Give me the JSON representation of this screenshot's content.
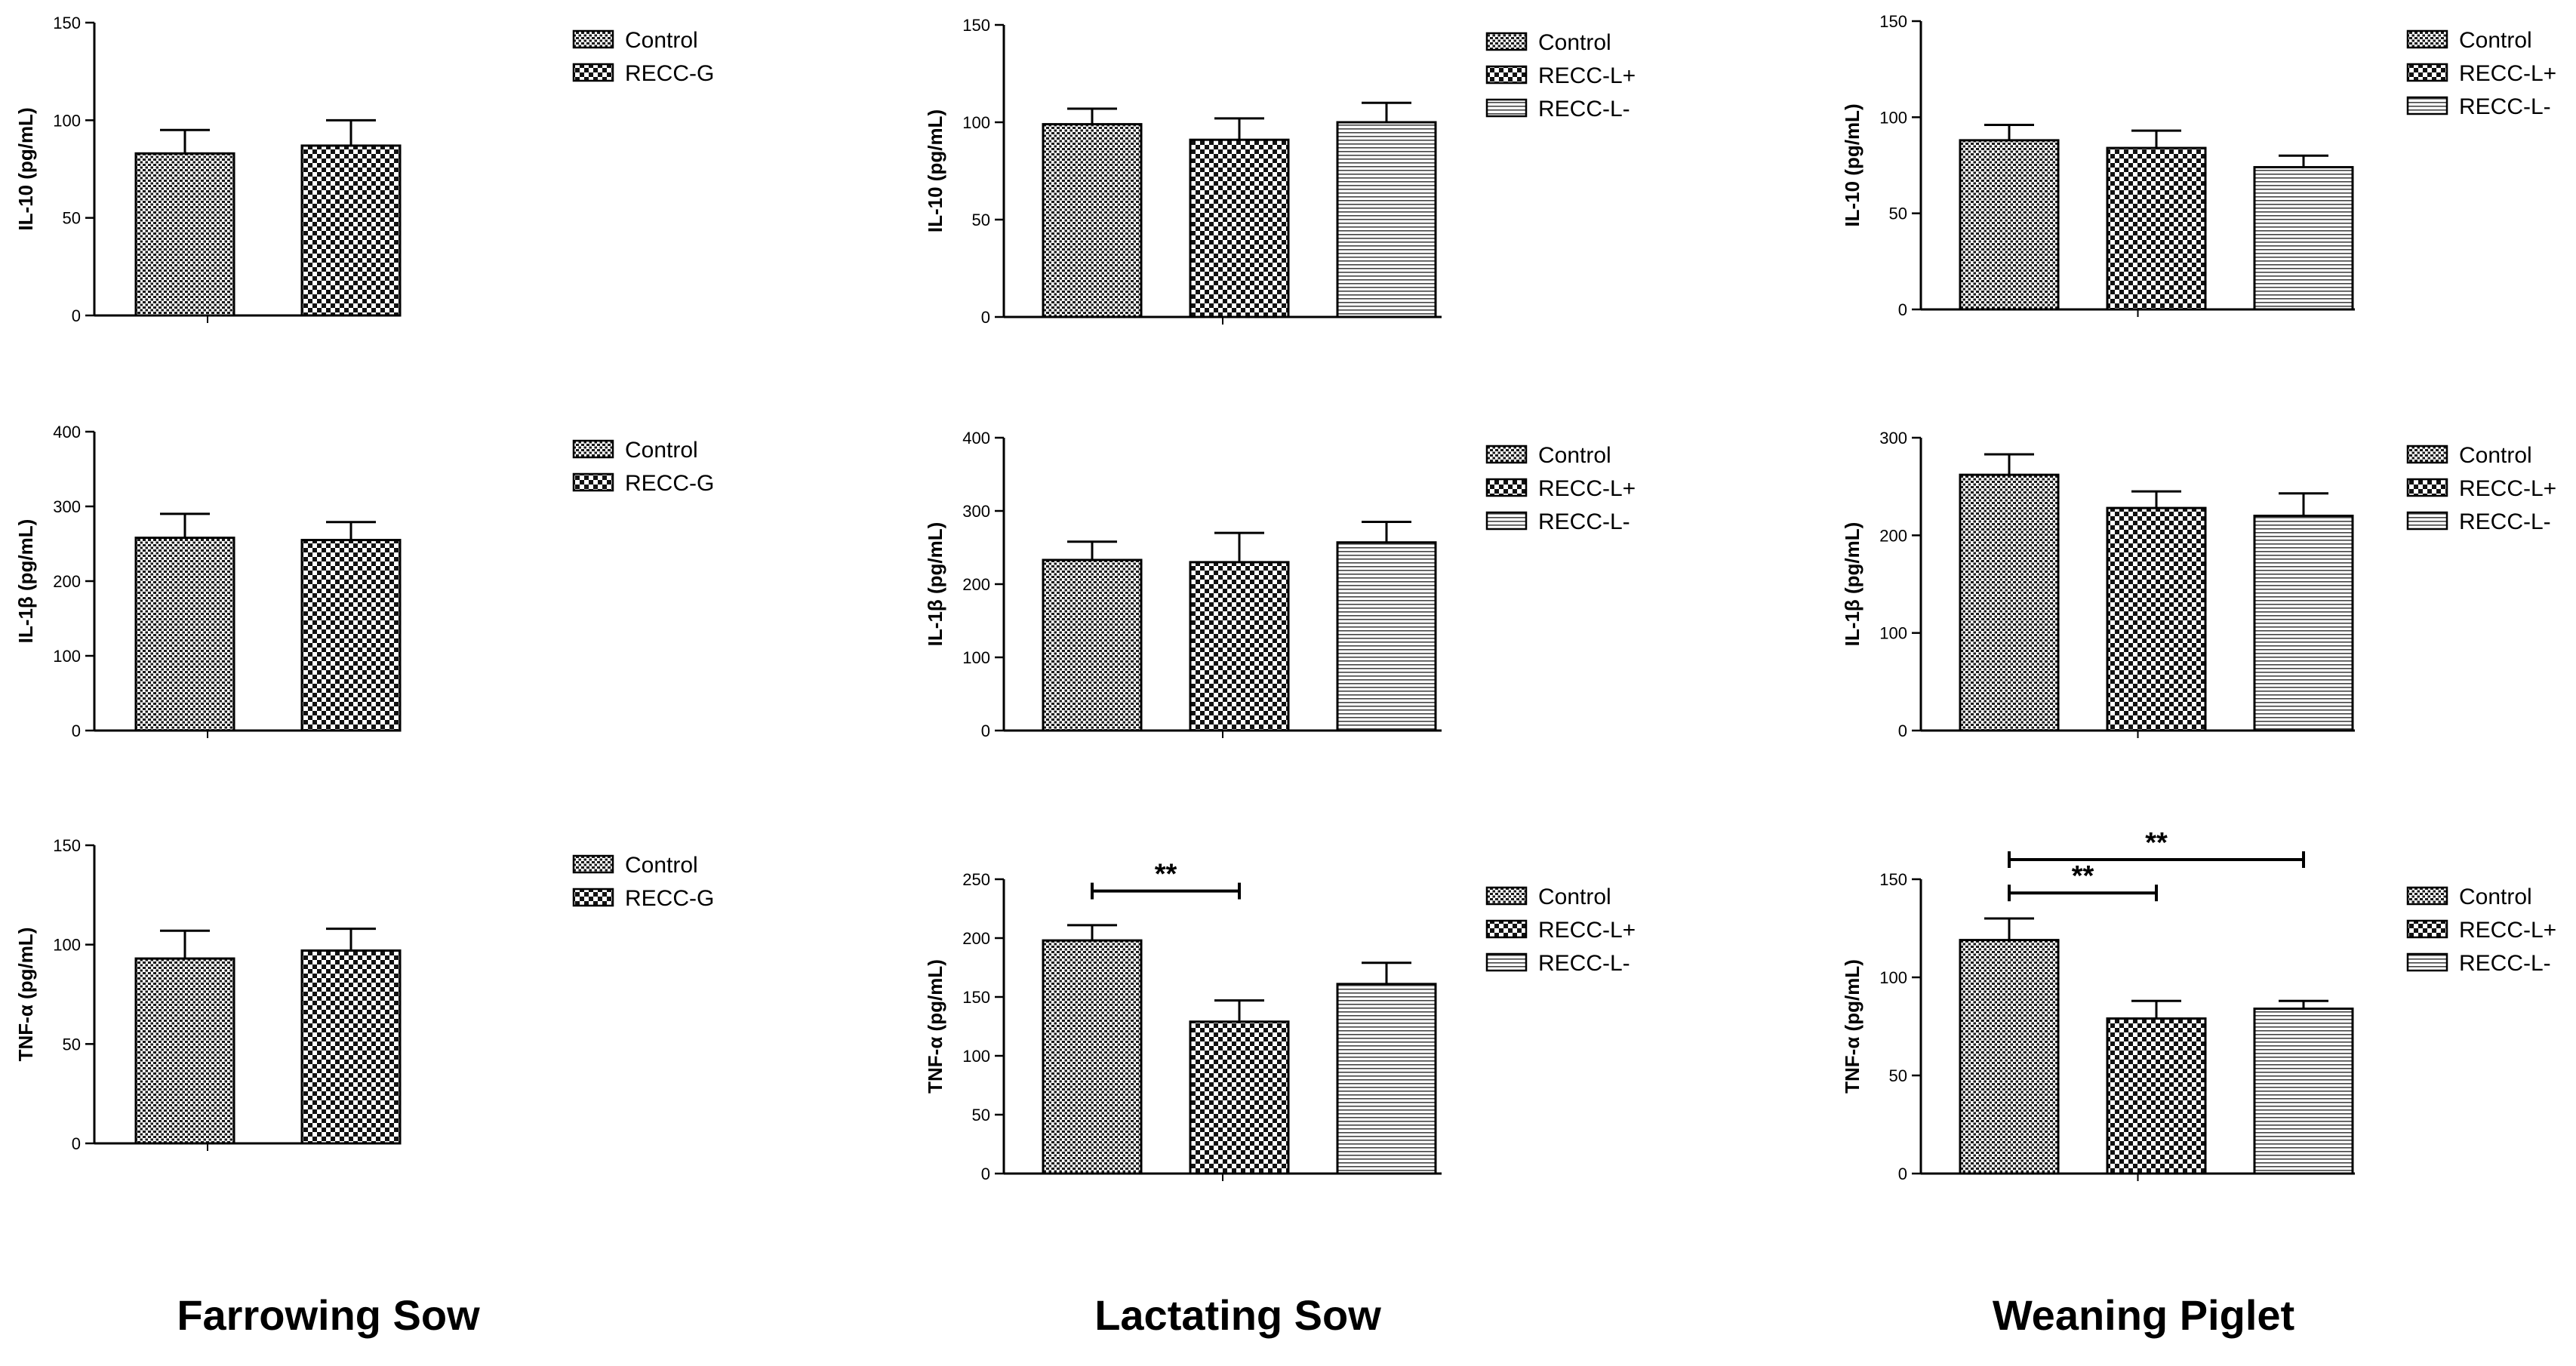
{
  "columns": [
    "Farrowing Sow",
    "Lactating Sow",
    "Weaning Piglet"
  ],
  "chart_data": [
    {
      "id": "fs-il10",
      "type": "bar",
      "ylabel": "IL-10 (pg/mL)",
      "ylim": [
        0,
        150
      ],
      "yticks": [
        "0",
        "50",
        "100",
        "150"
      ],
      "series": [
        {
          "name": "Control",
          "value": 83,
          "error": 12
        },
        {
          "name": "RECC-G",
          "value": 87,
          "error": 13
        }
      ],
      "significance": []
    },
    {
      "id": "ls-il10",
      "type": "bar",
      "ylabel": "IL-10 (pg/mL)",
      "ylim": [
        0,
        150
      ],
      "yticks": [
        "0",
        "50",
        "100",
        "150"
      ],
      "series": [
        {
          "name": "Control",
          "value": 99,
          "error": 8
        },
        {
          "name": "RECC-L+",
          "value": 91,
          "error": 11
        },
        {
          "name": "RECC-L-",
          "value": 100,
          "error": 10
        }
      ],
      "significance": []
    },
    {
      "id": "wp-il10",
      "type": "bar",
      "ylabel": "IL-10 (pg/mL)",
      "ylim": [
        0,
        150
      ],
      "yticks": [
        "0",
        "50",
        "100",
        "150"
      ],
      "series": [
        {
          "name": "Control",
          "value": 88,
          "error": 8
        },
        {
          "name": "RECC-L+",
          "value": 84,
          "error": 9
        },
        {
          "name": "RECC-L-",
          "value": 74,
          "error": 6
        }
      ],
      "significance": []
    },
    {
      "id": "fs-il1b",
      "type": "bar",
      "ylabel": "IL-1β (pg/mL)",
      "ylim": [
        0,
        400
      ],
      "yticks": [
        "0",
        "100",
        "200",
        "300",
        "400"
      ],
      "series": [
        {
          "name": "Control",
          "value": 258,
          "error": 32
        },
        {
          "name": "RECC-G",
          "value": 255,
          "error": 24
        }
      ],
      "significance": []
    },
    {
      "id": "ls-il1b",
      "type": "bar",
      "ylabel": "IL-1β (pg/mL)",
      "ylim": [
        0,
        400
      ],
      "yticks": [
        "0",
        "100",
        "200",
        "300",
        "400"
      ],
      "series": [
        {
          "name": "Control",
          "value": 233,
          "error": 25
        },
        {
          "name": "RECC-L+",
          "value": 230,
          "error": 40
        },
        {
          "name": "RECC-L-",
          "value": 257,
          "error": 28
        }
      ],
      "significance": []
    },
    {
      "id": "wp-il1b",
      "type": "bar",
      "ylabel": "IL-1β (pg/mL)",
      "ylim": [
        0,
        300
      ],
      "yticks": [
        "0",
        "100",
        "200",
        "300"
      ],
      "series": [
        {
          "name": "Control",
          "value": 262,
          "error": 21
        },
        {
          "name": "RECC-L+",
          "value": 228,
          "error": 17
        },
        {
          "name": "RECC-L-",
          "value": 220,
          "error": 23
        }
      ],
      "significance": []
    },
    {
      "id": "fs-tnf",
      "type": "bar",
      "ylabel": "TNF-α (pg/mL)",
      "ylim": [
        0,
        150
      ],
      "yticks": [
        "0",
        "50",
        "100",
        "150"
      ],
      "series": [
        {
          "name": "Control",
          "value": 93,
          "error": 14
        },
        {
          "name": "RECC-G",
          "value": 97,
          "error": 11
        }
      ],
      "significance": []
    },
    {
      "id": "ls-tnf",
      "type": "bar",
      "ylabel": "TNF-α (pg/mL)",
      "ylim": [
        0,
        250
      ],
      "yticks": [
        "0",
        "50",
        "100",
        "150",
        "200",
        "250"
      ],
      "series": [
        {
          "name": "Control",
          "value": 198,
          "error": 13
        },
        {
          "name": "RECC-L+",
          "value": 129,
          "error": 18
        },
        {
          "name": "RECC-L-",
          "value": 161,
          "error": 18
        }
      ],
      "significance": [
        {
          "from": 0,
          "to": 1,
          "label": "**",
          "at": 240
        }
      ]
    },
    {
      "id": "wp-tnf",
      "type": "bar",
      "ylabel": "TNF-α (pg/mL)",
      "ylim": [
        0,
        150
      ],
      "yticks": [
        "0",
        "50",
        "100",
        "150"
      ],
      "series": [
        {
          "name": "Control",
          "value": 119,
          "error": 11
        },
        {
          "name": "RECC-L+",
          "value": 79,
          "error": 9
        },
        {
          "name": "RECC-L-",
          "value": 84,
          "error": 4
        }
      ],
      "significance": [
        {
          "from": 0,
          "to": 1,
          "label": "**",
          "at": 143
        },
        {
          "from": 0,
          "to": 2,
          "label": "**",
          "at": 160
        }
      ]
    }
  ]
}
